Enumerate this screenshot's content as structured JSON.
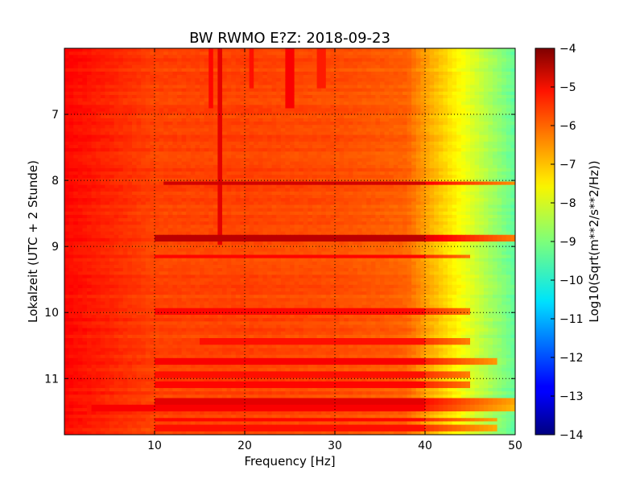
{
  "chart_data": {
    "type": "heatmap",
    "title": "BW RWMO E?Z: 2018-09-23",
    "xlabel": "Frequency [Hz]",
    "ylabel": "Lokalzeit (UTC + 2 Stunde)",
    "xlim": [
      0,
      50
    ],
    "ylim": [
      6.0,
      11.85
    ],
    "y_inverted": true,
    "x_ticks": [
      "10",
      "20",
      "30",
      "40",
      "50"
    ],
    "x_tick_values": [
      10,
      20,
      30,
      40,
      50
    ],
    "y_ticks": [
      "7",
      "8",
      "9",
      "10",
      "11"
    ],
    "y_tick_values": [
      7,
      8,
      9,
      10,
      11
    ],
    "grid": true,
    "colormap": "jet",
    "colorbar": {
      "label": "Log10(Sqrt(m**2/s**2/Hz))",
      "range": [
        -14,
        -4
      ],
      "ticks": [
        "−4",
        "−5",
        "−6",
        "−7",
        "−8",
        "−9",
        "−10",
        "−11",
        "−12",
        "−13",
        "−14"
      ],
      "tick_values": [
        -4,
        -5,
        -6,
        -7,
        -8,
        -9,
        -10,
        -11,
        -12,
        -13,
        -14
      ]
    },
    "base_level_by_frequency": {
      "frequency_hz": [
        0,
        10,
        20,
        30,
        38,
        40,
        42,
        44,
        46,
        48,
        50
      ],
      "log10_amplitude": [
        -5.3,
        -5.9,
        -5.9,
        -6.0,
        -6.2,
        -6.8,
        -7.3,
        -7.8,
        -8.3,
        -8.8,
        -9.3
      ]
    },
    "horizontal_bands": [
      {
        "time": 8.04,
        "frequency_range": [
          11,
          50
        ],
        "level": -4.8
      },
      {
        "time": 8.88,
        "frequency_range": [
          10,
          50
        ],
        "level": -4.6
      },
      {
        "time": 9.15,
        "frequency_range": [
          10,
          45
        ],
        "level": -5.3
      },
      {
        "time": 9.97,
        "frequency_range": [
          10,
          45
        ],
        "level": -5.3
      },
      {
        "time": 10.45,
        "frequency_range": [
          15,
          45
        ],
        "level": -5.4
      },
      {
        "time": 10.73,
        "frequency_range": [
          10,
          48
        ],
        "level": -5.2
      },
      {
        "time": 10.95,
        "frequency_range": [
          10,
          45
        ],
        "level": -5.4
      },
      {
        "time": 11.1,
        "frequency_range": [
          10,
          45
        ],
        "level": -5.3
      },
      {
        "time": 11.35,
        "frequency_range": [
          10,
          50
        ],
        "level": -5.0
      },
      {
        "time": 11.45,
        "frequency_range": [
          3,
          50
        ],
        "level": -5.2
      },
      {
        "time": 11.62,
        "frequency_range": [
          10,
          48
        ],
        "level": -5.3
      },
      {
        "time": 11.75,
        "frequency_range": [
          10,
          48
        ],
        "level": -5.4
      }
    ],
    "vertical_lines": [
      {
        "frequency": 17.2,
        "time_range": [
          6.0,
          9.0
        ],
        "level": -5.0
      },
      {
        "frequency": 16.4,
        "time_range": [
          6.0,
          6.9
        ],
        "level": -5.3
      },
      {
        "frequency": 20.8,
        "time_range": [
          6.0,
          6.6
        ],
        "level": -5.4
      },
      {
        "frequency": 25.0,
        "time_range": [
          6.0,
          6.9
        ],
        "level": -5.2
      },
      {
        "frequency": 28.5,
        "time_range": [
          6.0,
          6.6
        ],
        "level": -5.5
      }
    ]
  }
}
